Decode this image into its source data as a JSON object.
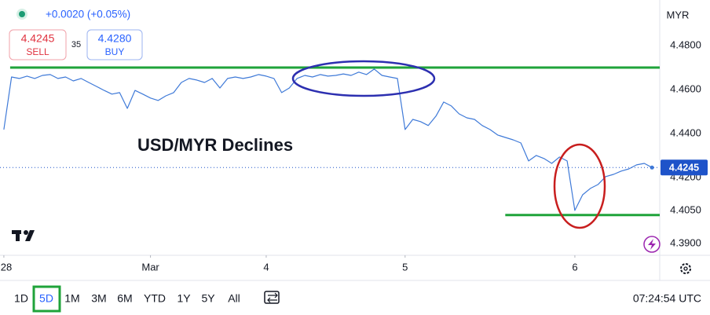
{
  "header": {
    "change": "+0.0020 (+0.05%)",
    "sell_price": "4.4245",
    "sell_label": "SELL",
    "spread": "35",
    "buy_price": "4.4280",
    "buy_label": "BUY"
  },
  "currency": "MYR",
  "chart_data": {
    "type": "line",
    "title": "USD/MYR Declines",
    "x": [
      0,
      1,
      2,
      3,
      4,
      5,
      6,
      7,
      8,
      9,
      10,
      11,
      12,
      13,
      14,
      15,
      16,
      17,
      18,
      19,
      20,
      21,
      22,
      23,
      24,
      25,
      26,
      27,
      28,
      29,
      30,
      31,
      32,
      33,
      34,
      35,
      36,
      37,
      38,
      39,
      40,
      41,
      42,
      43,
      44,
      45,
      46,
      47,
      48,
      49,
      50,
      51,
      52,
      53,
      54,
      55,
      56,
      57,
      58,
      59,
      60,
      61,
      62,
      63,
      64,
      65,
      66,
      67,
      68,
      69,
      70,
      71,
      72,
      73,
      74,
      75,
      76,
      77,
      78,
      79,
      80,
      81,
      82,
      83,
      84
    ],
    "values": [
      4.4418,
      4.4657,
      4.465,
      4.4661,
      4.465,
      4.4664,
      4.4668,
      4.465,
      4.4657,
      4.4639,
      4.465,
      4.4632,
      4.4614,
      4.4596,
      4.4579,
      4.4586,
      4.4514,
      4.4596,
      4.4579,
      4.4561,
      4.455,
      4.4571,
      4.4586,
      4.4632,
      4.465,
      4.4643,
      4.4632,
      4.465,
      4.4607,
      4.465,
      4.4657,
      4.465,
      4.4657,
      4.4668,
      4.4661,
      4.465,
      4.4586,
      4.4607,
      4.465,
      4.4664,
      4.4657,
      4.4668,
      4.4661,
      4.4664,
      4.4671,
      4.4664,
      4.4679,
      4.4668,
      4.4693,
      4.4664,
      4.4657,
      4.465,
      4.4418,
      4.4464,
      4.4454,
      4.4436,
      4.4479,
      4.4543,
      4.4525,
      4.4489,
      4.4471,
      4.4464,
      4.4436,
      4.4418,
      4.4393,
      4.4382,
      4.4371,
      4.4357,
      4.4275,
      4.43,
      4.4286,
      4.4264,
      4.4293,
      4.4275,
      4.405,
      4.4121,
      4.415,
      4.4168,
      4.4204,
      4.4214,
      4.4229,
      4.4239,
      4.4257,
      4.4264,
      4.4245
    ],
    "color": "#3f7ad8",
    "xlim": [
      -0.5,
      85
    ],
    "xticks": [
      {
        "value": 0,
        "label": "28"
      },
      {
        "value": 19,
        "label": "Mar"
      },
      {
        "value": 34,
        "label": "4"
      },
      {
        "value": 52,
        "label": "5"
      },
      {
        "value": 74,
        "label": "6"
      }
    ],
    "ylim": [
      4.3846,
      4.5007
    ],
    "yticks": [
      {
        "value": 4.39,
        "label": "4.3900"
      },
      {
        "value": 4.405,
        "label": "4.4050"
      },
      {
        "value": 4.42,
        "label": "4.4200"
      },
      {
        "value": 4.44,
        "label": "4.4400"
      },
      {
        "value": 4.46,
        "label": "4.4600"
      },
      {
        "value": 4.48,
        "label": "4.4800"
      }
    ],
    "grid": false,
    "last_price": 4.4245,
    "last_price_color": "#1e53c9",
    "levels": [
      {
        "value": 4.47,
        "from": 0,
        "color": "#1fa33a"
      },
      {
        "value": 4.4029,
        "from": 66,
        "color": "#1fa33a"
      }
    ]
  },
  "toolbar": {
    "ranges": [
      "1D",
      "5D",
      "1M",
      "3M",
      "6M",
      "YTD",
      "1Y",
      "5Y",
      "All"
    ],
    "time": "07:24:54 UTC"
  }
}
